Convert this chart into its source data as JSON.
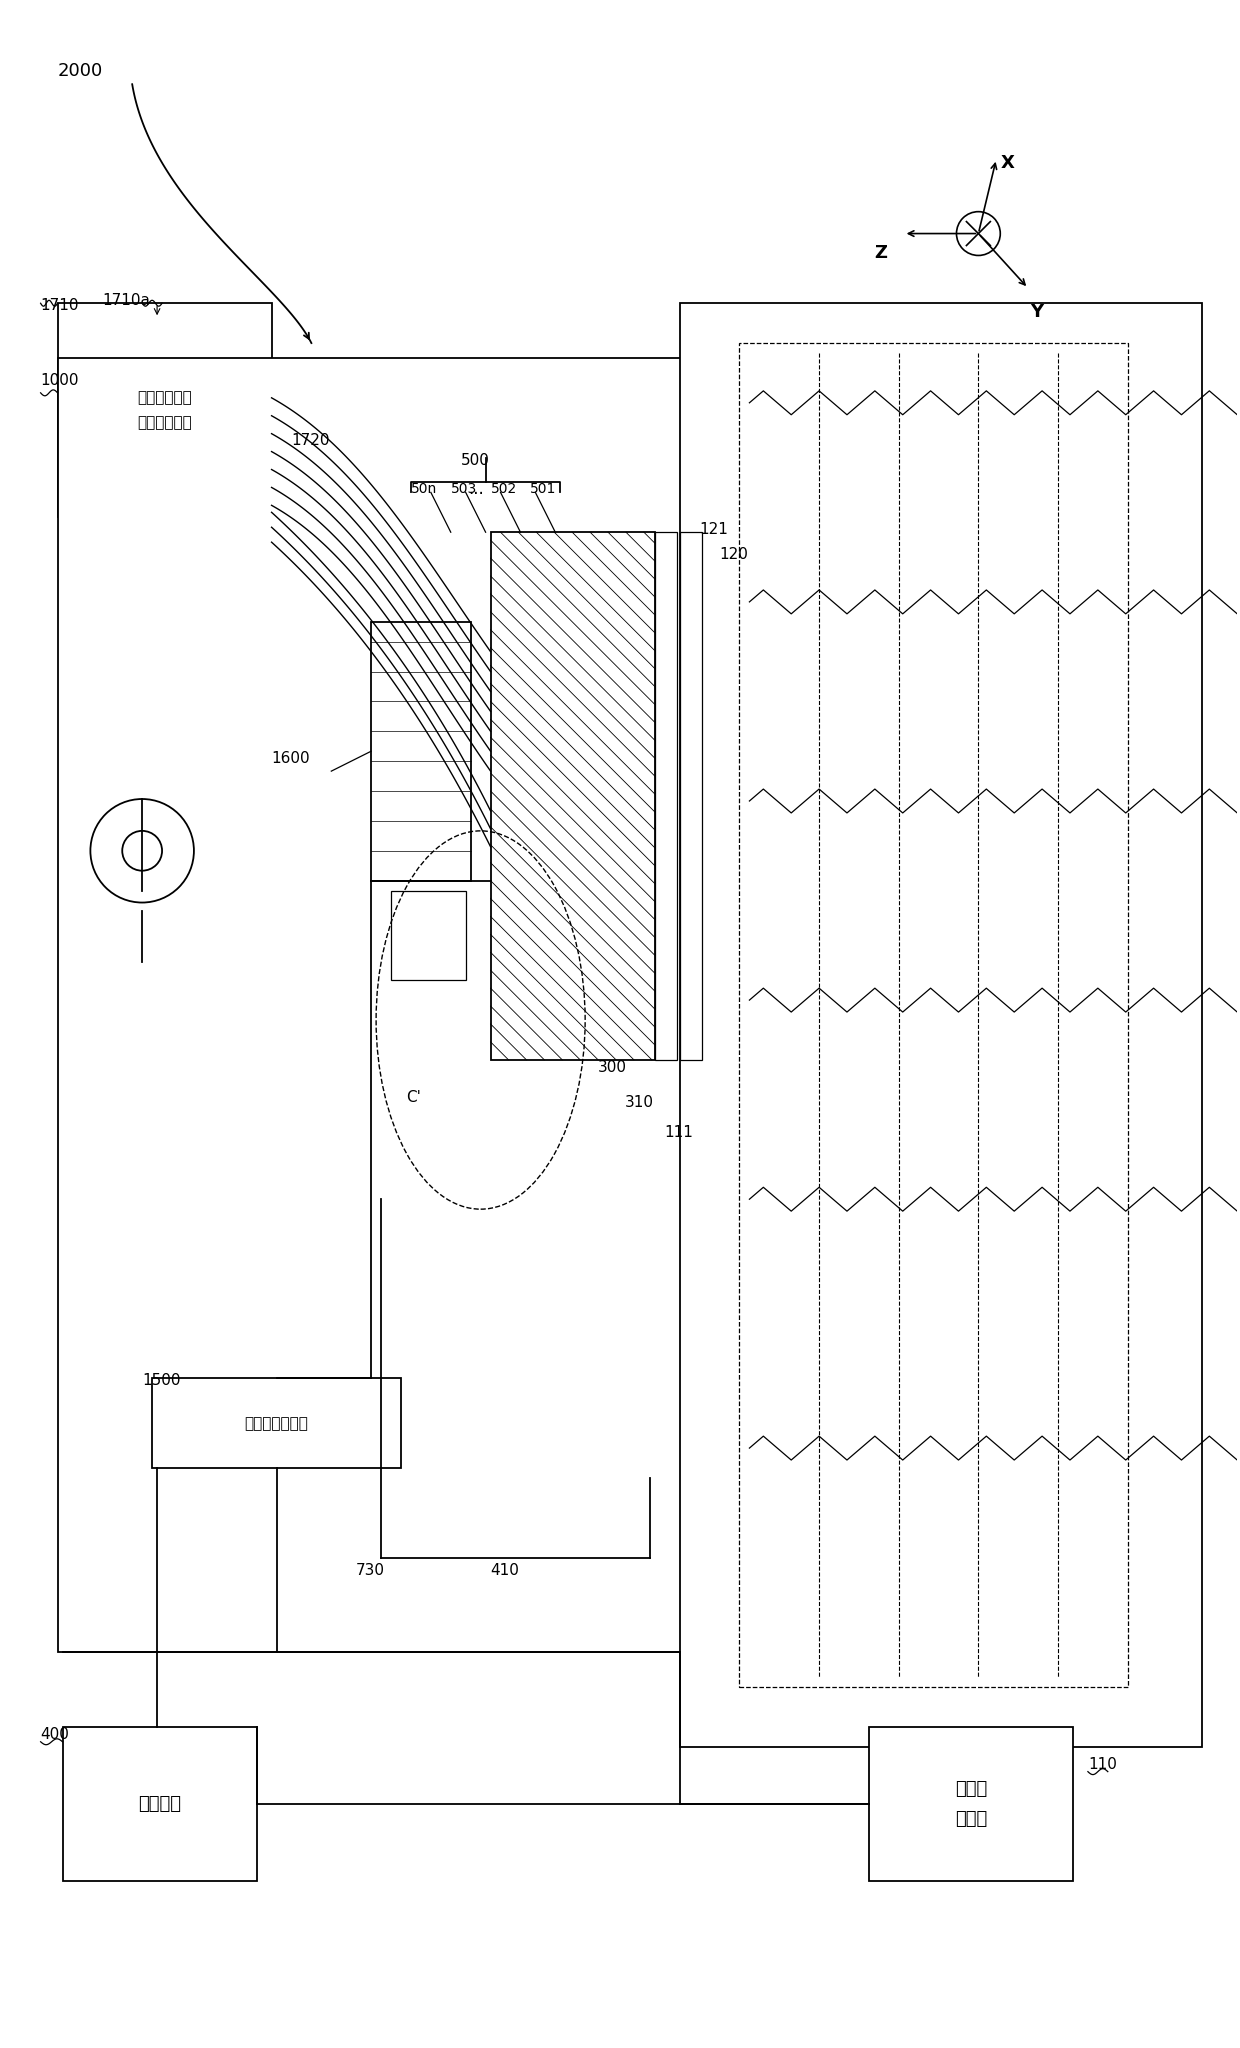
{
  "bg_color": "#ffffff",
  "fig_width": 12.4,
  "fig_height": 20.48,
  "black": "#000000",
  "lw": 1.3,
  "box1_text": "支撇层形成用\n材料供给单元",
  "box2_text": "材料供给控制器",
  "box3_text": "控制单元",
  "box4_text": "工作台\n控制器"
}
